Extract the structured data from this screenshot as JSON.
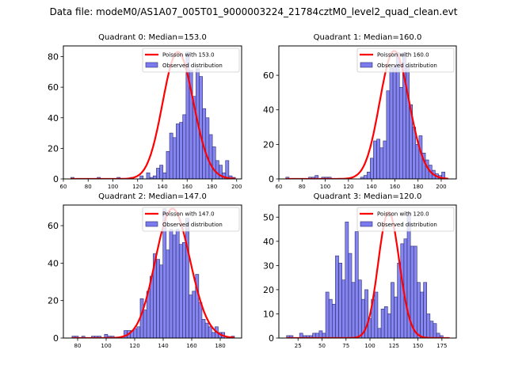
{
  "suptitle": "Data file: modeM0/AS1A07_005T01_9000003224_21784cztM0_level2_quad_clean.evt",
  "colors": {
    "bar_fill": "#7b7bef",
    "bar_edge": "#2a2a6e",
    "poisson_line": "#ff0000",
    "axes": "#000000"
  },
  "chart_data": [
    {
      "type": "bar",
      "title": "Quadrant 0: Median=153.0",
      "xlabel": "",
      "ylabel": "",
      "xlim": [
        60,
        204
      ],
      "ylim": [
        0,
        87
      ],
      "xticks": [
        60,
        80,
        100,
        120,
        140,
        160,
        180,
        200
      ],
      "yticks": [
        0,
        20,
        40,
        60,
        80
      ],
      "legend": {
        "placement": "top-right",
        "entries": [
          "Poisson with 153.0",
          "Observed distribution"
        ]
      },
      "poisson_mean": 153.0,
      "poisson_scale": 83,
      "bin_start": 66,
      "bin_width": 2.66,
      "values": [
        1,
        0,
        0,
        0,
        0,
        0,
        0,
        0,
        1,
        0,
        0,
        0,
        0,
        0,
        1,
        0,
        0,
        0,
        1,
        0,
        0,
        2,
        0,
        4,
        1,
        2,
        7,
        9,
        4,
        18,
        30,
        27,
        36,
        37,
        42,
        83,
        71,
        54,
        72,
        67,
        46,
        40,
        29,
        21,
        12,
        9,
        4,
        12,
        2,
        1
      ]
    },
    {
      "type": "bar",
      "title": "Quadrant 1: Median=160.0",
      "xlabel": "",
      "ylabel": "",
      "xlim": [
        60,
        213
      ],
      "ylim": [
        0,
        77
      ],
      "xticks": [
        60,
        80,
        100,
        120,
        140,
        160,
        180,
        200
      ],
      "yticks": [
        0,
        20,
        40,
        60
      ],
      "legend": {
        "placement": "top-right",
        "entries": [
          "Poisson with 160.0",
          "Observed distribution"
        ]
      },
      "poisson_mean": 160.0,
      "poisson_scale": 74,
      "bin_start": 66,
      "bin_width": 2.8,
      "values": [
        1,
        0,
        0,
        0,
        0,
        0,
        0,
        1,
        1,
        2,
        0,
        1,
        1,
        1,
        0,
        0,
        0,
        0,
        0,
        0,
        0,
        0,
        0,
        1,
        2,
        4,
        12,
        22,
        23,
        18,
        22,
        51,
        64,
        65,
        73,
        53,
        73,
        65,
        43,
        30,
        20,
        25,
        15,
        11,
        8,
        5,
        3,
        2,
        4,
        0
      ]
    },
    {
      "type": "bar",
      "title": "Quadrant 2: Median=147.0",
      "xlabel": "",
      "ylabel": "",
      "xlim": [
        70,
        195
      ],
      "ylim": [
        0,
        71
      ],
      "xticks": [
        80,
        100,
        120,
        140,
        160,
        180
      ],
      "yticks": [
        0,
        20,
        40,
        60
      ],
      "legend": {
        "placement": "top-right",
        "entries": [
          "Poisson with 147.0",
          "Observed distribution"
        ]
      },
      "poisson_mean": 147.0,
      "poisson_scale": 69,
      "bin_start": 76,
      "bin_width": 2.28,
      "values": [
        1,
        1,
        0,
        1,
        0,
        0,
        1,
        1,
        1,
        0,
        2,
        1,
        1,
        0,
        0,
        0,
        4,
        4,
        4,
        5,
        6,
        21,
        15,
        25,
        33,
        45,
        42,
        39,
        69,
        47,
        58,
        55,
        58,
        50,
        51,
        64,
        23,
        25,
        34,
        19,
        10,
        8,
        6,
        3,
        6,
        3,
        3,
        0,
        0,
        1
      ]
    },
    {
      "type": "bar",
      "title": "Quadrant 3: Median=120.0",
      "xlabel": "",
      "ylabel": "",
      "xlim": [
        5,
        190
      ],
      "ylim": [
        0,
        55
      ],
      "xticks": [
        25,
        50,
        75,
        100,
        125,
        150,
        175
      ],
      "yticks": [
        0,
        10,
        20,
        30,
        40,
        50
      ],
      "legend": {
        "placement": "top-right",
        "entries": [
          "Poisson with 120.0",
          "Observed distribution"
        ]
      },
      "poisson_mean": 120.0,
      "poisson_scale": 52,
      "bin_start": 13,
      "bin_width": 3.4,
      "values": [
        1,
        1,
        0,
        0,
        2,
        1,
        1,
        1,
        2,
        2,
        3,
        2,
        19,
        16,
        14,
        34,
        31,
        24,
        48,
        35,
        23,
        44,
        24,
        16,
        20,
        8,
        16,
        19,
        4,
        12,
        13,
        10,
        23,
        17,
        31,
        39,
        41,
        52,
        38,
        38,
        23,
        19,
        23,
        10,
        7,
        6,
        2,
        1,
        0,
        0
      ]
    }
  ]
}
